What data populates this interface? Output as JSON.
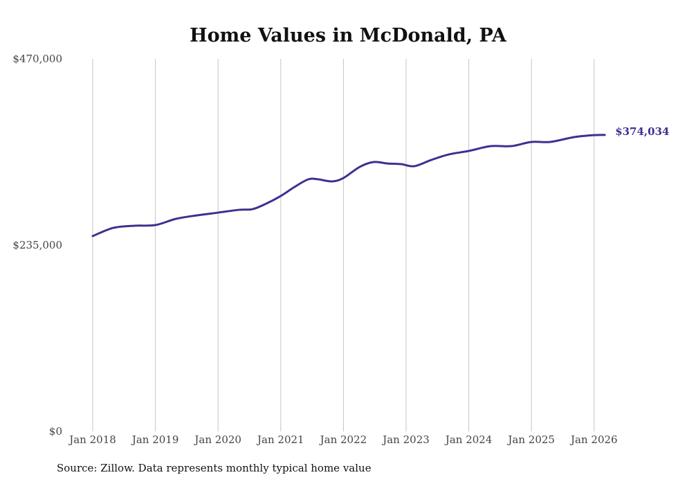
{
  "chart_data": {
    "type": "line",
    "title": "Home Values in McDonald, PA",
    "xlabel": "",
    "ylabel": "",
    "ylim": [
      0,
      470000
    ],
    "xlim": [
      2018,
      2026.17
    ],
    "y_ticks": [
      0,
      235000,
      470000
    ],
    "y_tick_labels": [
      "$0",
      "$235,000",
      "$470,000"
    ],
    "x_ticks": [
      2018,
      2019,
      2020,
      2021,
      2022,
      2023,
      2024,
      2025,
      2026
    ],
    "x_tick_labels": [
      "Jan 2018",
      "Jan 2019",
      "Jan 2020",
      "Jan 2021",
      "Jan 2022",
      "Jan 2023",
      "Jan 2024",
      "Jan 2025",
      "Jan 2026"
    ],
    "grid": "vertical",
    "series": [
      {
        "name": "Typical home value",
        "color": "#3b3191",
        "x": [
          2018.0,
          2018.33,
          2018.67,
          2019.0,
          2019.33,
          2019.67,
          2020.0,
          2020.33,
          2020.55,
          2020.77,
          2021.0,
          2021.22,
          2021.44,
          2021.6,
          2021.82,
          2022.0,
          2022.26,
          2022.48,
          2022.7,
          2022.92,
          2023.13,
          2023.4,
          2023.68,
          2024.0,
          2024.35,
          2024.68,
          2025.0,
          2025.3,
          2025.68,
          2026.0,
          2026.17
        ],
        "values": [
          246400,
          256800,
          259500,
          260300,
          268200,
          272600,
          276000,
          279500,
          280400,
          287400,
          297000,
          308400,
          318000,
          318000,
          315400,
          319700,
          333700,
          339800,
          338000,
          337200,
          334600,
          342400,
          349400,
          353800,
          359900,
          359900,
          365200,
          365200,
          371300,
          373800,
          374034
        ]
      }
    ],
    "end_label": "$374,034",
    "legend": "none"
  },
  "source": "Source: Zillow. Data represents monthly typical home value"
}
